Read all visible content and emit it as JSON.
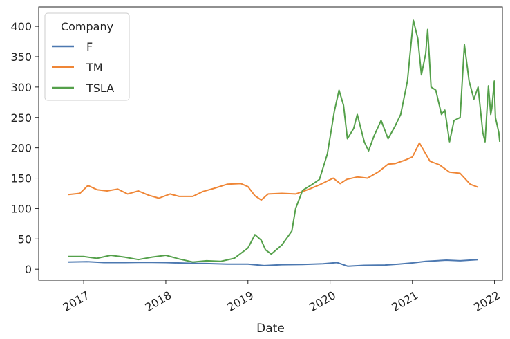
{
  "chart_data": {
    "type": "line",
    "title": "",
    "xlabel": "Date",
    "ylabel": "",
    "xlim": [
      "2016-06-15",
      "2022-02-05"
    ],
    "ylim": [
      -18,
      432
    ],
    "grid": false,
    "x_ticks": [
      "2017-01-01",
      "2018-01-01",
      "2019-01-01",
      "2020-01-01",
      "2021-01-01",
      "2022-01-01"
    ],
    "x_tick_labels": [
      "2017",
      "2018",
      "2019",
      "2020",
      "2021",
      "2022"
    ],
    "y_ticks": [
      0,
      50,
      100,
      150,
      200,
      250,
      300,
      350,
      400
    ],
    "y_tick_labels": [
      "0",
      "50",
      "100",
      "150",
      "200",
      "250",
      "300",
      "350",
      "400"
    ],
    "legend": {
      "title": "Company",
      "position": "top-left",
      "entries": [
        "F",
        "TM",
        "TSLA"
      ]
    },
    "series": [
      {
        "name": "F",
        "color": "#4c78b0",
        "points": [
          [
            "2016-10-25",
            12
          ],
          [
            "2017-01-15",
            12.5
          ],
          [
            "2017-04-01",
            11
          ],
          [
            "2017-07-01",
            11
          ],
          [
            "2017-10-01",
            11.5
          ],
          [
            "2018-01-01",
            11
          ],
          [
            "2018-04-01",
            10
          ],
          [
            "2018-07-01",
            9.5
          ],
          [
            "2018-10-01",
            8.5
          ],
          [
            "2019-01-01",
            8.5
          ],
          [
            "2019-03-15",
            6
          ],
          [
            "2019-06-01",
            7.5
          ],
          [
            "2019-09-01",
            8
          ],
          [
            "2019-12-01",
            9
          ],
          [
            "2020-02-01",
            11
          ],
          [
            "2020-03-20",
            5
          ],
          [
            "2020-06-01",
            6.5
          ],
          [
            "2020-09-01",
            7
          ],
          [
            "2020-11-01",
            8.5
          ],
          [
            "2021-01-01",
            10.5
          ],
          [
            "2021-03-01",
            13
          ],
          [
            "2021-06-01",
            15
          ],
          [
            "2021-08-01",
            14
          ],
          [
            "2021-10-20",
            16
          ]
        ]
      },
      {
        "name": "TM",
        "color": "#ef8636",
        "points": [
          [
            "2016-10-25",
            123
          ],
          [
            "2016-12-15",
            125
          ],
          [
            "2017-01-20",
            138
          ],
          [
            "2017-03-01",
            131
          ],
          [
            "2017-04-15",
            129
          ],
          [
            "2017-06-01",
            132
          ],
          [
            "2017-07-15",
            124
          ],
          [
            "2017-09-01",
            129
          ],
          [
            "2017-10-15",
            122
          ],
          [
            "2017-12-01",
            117
          ],
          [
            "2018-01-20",
            124
          ],
          [
            "2018-03-01",
            120
          ],
          [
            "2018-05-01",
            120
          ],
          [
            "2018-06-15",
            128
          ],
          [
            "2018-08-01",
            133
          ],
          [
            "2018-10-01",
            140
          ],
          [
            "2018-12-01",
            141
          ],
          [
            "2019-01-01",
            136
          ],
          [
            "2019-02-01",
            121
          ],
          [
            "2019-03-01",
            114
          ],
          [
            "2019-04-01",
            124
          ],
          [
            "2019-06-01",
            125
          ],
          [
            "2019-08-01",
            124
          ],
          [
            "2019-10-01",
            132
          ],
          [
            "2019-11-15",
            139
          ],
          [
            "2020-01-15",
            150
          ],
          [
            "2020-02-15",
            141
          ],
          [
            "2020-03-15",
            148
          ],
          [
            "2020-05-01",
            152
          ],
          [
            "2020-06-15",
            150
          ],
          [
            "2020-08-01",
            160
          ],
          [
            "2020-09-15",
            173
          ],
          [
            "2020-10-15",
            174
          ],
          [
            "2020-12-01",
            180
          ],
          [
            "2021-01-01",
            185
          ],
          [
            "2021-02-01",
            208
          ],
          [
            "2021-02-20",
            196
          ],
          [
            "2021-03-20",
            178
          ],
          [
            "2021-05-01",
            172
          ],
          [
            "2021-06-15",
            160
          ],
          [
            "2021-08-01",
            158
          ],
          [
            "2021-09-15",
            140
          ],
          [
            "2021-10-20",
            135
          ]
        ]
      },
      {
        "name": "TSLA",
        "color": "#54a04a",
        "points": [
          [
            "2016-10-25",
            21
          ],
          [
            "2017-01-01",
            21
          ],
          [
            "2017-03-01",
            18
          ],
          [
            "2017-05-01",
            23
          ],
          [
            "2017-07-01",
            20
          ],
          [
            "2017-09-01",
            16
          ],
          [
            "2017-11-01",
            20
          ],
          [
            "2018-01-01",
            23
          ],
          [
            "2018-03-01",
            17
          ],
          [
            "2018-05-01",
            12
          ],
          [
            "2018-07-01",
            14
          ],
          [
            "2018-09-01",
            13
          ],
          [
            "2018-11-01",
            18
          ],
          [
            "2019-01-01",
            35
          ],
          [
            "2019-02-01",
            57
          ],
          [
            "2019-03-01",
            48
          ],
          [
            "2019-03-20",
            32
          ],
          [
            "2019-04-15",
            25
          ],
          [
            "2019-06-01",
            40
          ],
          [
            "2019-07-15",
            63
          ],
          [
            "2019-08-01",
            100
          ],
          [
            "2019-09-01",
            130
          ],
          [
            "2019-10-15",
            140
          ],
          [
            "2019-11-15",
            148
          ],
          [
            "2019-12-20",
            190
          ],
          [
            "2020-01-20",
            260
          ],
          [
            "2020-02-10",
            295
          ],
          [
            "2020-03-01",
            270
          ],
          [
            "2020-03-18",
            215
          ],
          [
            "2020-04-15",
            232
          ],
          [
            "2020-05-01",
            255
          ],
          [
            "2020-06-01",
            210
          ],
          [
            "2020-06-20",
            195
          ],
          [
            "2020-07-15",
            220
          ],
          [
            "2020-08-15",
            245
          ],
          [
            "2020-09-15",
            215
          ],
          [
            "2020-10-15",
            235
          ],
          [
            "2020-11-10",
            255
          ],
          [
            "2020-12-10",
            310
          ],
          [
            "2021-01-05",
            410
          ],
          [
            "2021-01-25",
            380
          ],
          [
            "2021-02-10",
            320
          ],
          [
            "2021-03-01",
            355
          ],
          [
            "2021-03-10",
            395
          ],
          [
            "2021-03-25",
            300
          ],
          [
            "2021-04-15",
            295
          ],
          [
            "2021-05-10",
            255
          ],
          [
            "2021-05-25",
            262
          ],
          [
            "2021-06-15",
            210
          ],
          [
            "2021-07-05",
            245
          ],
          [
            "2021-08-01",
            250
          ],
          [
            "2021-08-20",
            370
          ],
          [
            "2021-09-10",
            310
          ],
          [
            "2021-10-01",
            280
          ],
          [
            "2021-10-20",
            300
          ],
          [
            "2021-11-10",
            225
          ],
          [
            "2021-11-20",
            210
          ],
          [
            "2021-12-05",
            302
          ],
          [
            "2021-12-15",
            255
          ],
          [
            "2021-12-31",
            310
          ],
          [
            "2022-01-01",
            290
          ],
          [
            "2021-12-20",
            265
          ],
          [
            "2022-01-05",
            250
          ],
          [
            "2022-01-20",
            225
          ],
          [
            "2022-01-24",
            210
          ]
        ]
      }
    ]
  }
}
